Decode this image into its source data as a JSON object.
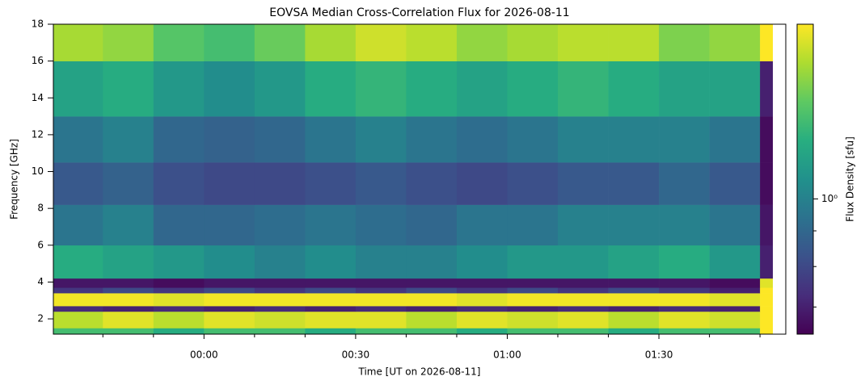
{
  "chart_data": {
    "type": "heatmap",
    "title": "EOVSA Median Cross-Correlation Flux for 2026-08-11",
    "xlabel": "Time [UT on 2026-08-11]",
    "ylabel": "Frequency [GHz]",
    "colorbar_label": "Flux Density [sfu]",
    "colormap": "viridis",
    "x_edges": [
      -29.8,
      -20,
      -10,
      0,
      10,
      20,
      30,
      40,
      50,
      60,
      70,
      80,
      90,
      100,
      110,
      112.5
    ],
    "y_edges": [
      1.17,
      1.5,
      2.4,
      2.7,
      3.4,
      3.7,
      4.2,
      6,
      8.2,
      10.5,
      13,
      16,
      18
    ],
    "values": [
      [
        1.3,
        1.3,
        1.2,
        1.3,
        1.3,
        1.2,
        1.3,
        1.3,
        1.2,
        1.3,
        1.3,
        1.2,
        1.3,
        1.3,
        1.78
      ],
      [
        1.6,
        1.7,
        1.6,
        1.7,
        1.65,
        1.7,
        1.7,
        1.6,
        1.7,
        1.65,
        1.7,
        1.6,
        1.7,
        1.65,
        1.78
      ],
      [
        0.72,
        0.7,
        0.72,
        0.7,
        0.72,
        0.7,
        0.72,
        0.7,
        0.72,
        0.7,
        0.72,
        0.7,
        0.72,
        0.7,
        1.78
      ],
      [
        1.75,
        1.75,
        1.7,
        1.75,
        1.75,
        1.75,
        1.75,
        1.75,
        1.7,
        1.75,
        1.75,
        1.75,
        1.75,
        1.7,
        1.78
      ],
      [
        0.75,
        0.8,
        0.75,
        0.8,
        0.75,
        0.8,
        0.75,
        0.8,
        0.75,
        0.8,
        0.75,
        0.8,
        0.75,
        0.7,
        1.78
      ],
      [
        0.68,
        0.68,
        0.66,
        0.68,
        0.68,
        0.68,
        0.68,
        0.68,
        0.68,
        0.68,
        0.68,
        0.68,
        0.68,
        0.66,
        1.7
      ],
      [
        1.2,
        1.15,
        1.1,
        1.05,
        1.0,
        1.05,
        1.0,
        1.0,
        1.05,
        1.1,
        1.1,
        1.15,
        1.2,
        1.1,
        0.7
      ],
      [
        0.95,
        1.0,
        0.9,
        0.9,
        0.92,
        0.95,
        0.92,
        0.9,
        0.95,
        0.95,
        1.0,
        1.0,
        1.0,
        0.95,
        0.68
      ],
      [
        0.85,
        0.88,
        0.82,
        0.8,
        0.8,
        0.82,
        0.85,
        0.82,
        0.8,
        0.82,
        0.85,
        0.85,
        0.9,
        0.85,
        0.66
      ],
      [
        0.95,
        1.0,
        0.9,
        0.88,
        0.9,
        0.95,
        1.0,
        0.95,
        0.92,
        0.95,
        1.0,
        1.0,
        1.0,
        0.95,
        0.66
      ],
      [
        1.15,
        1.2,
        1.1,
        1.05,
        1.1,
        1.2,
        1.25,
        1.2,
        1.15,
        1.2,
        1.25,
        1.2,
        1.15,
        1.15,
        0.7
      ],
      [
        1.55,
        1.5,
        1.35,
        1.3,
        1.4,
        1.55,
        1.65,
        1.6,
        1.5,
        1.55,
        1.6,
        1.6,
        1.45,
        1.5,
        1.78
      ]
    ],
    "xlim": [
      -29.8,
      115.1
    ],
    "ylim": [
      1.17,
      18
    ],
    "xticks": [
      {
        "value": 0,
        "label": "00:00"
      },
      {
        "value": 30,
        "label": "00:30"
      },
      {
        "value": 60,
        "label": "01:00"
      },
      {
        "value": 90,
        "label": "01:30"
      }
    ],
    "xticks_minor": [
      -20,
      -10,
      10,
      20,
      40,
      50,
      70,
      80,
      100,
      110
    ],
    "yticks": [
      2,
      4,
      6,
      8,
      10,
      12,
      14,
      16,
      18
    ],
    "clim": [
      0.64,
      1.78
    ],
    "clog": true,
    "cticks": [
      {
        "value": 1,
        "label": "10⁰"
      }
    ],
    "cticks_minor": [
      0.7,
      0.8,
      0.9
    ]
  }
}
